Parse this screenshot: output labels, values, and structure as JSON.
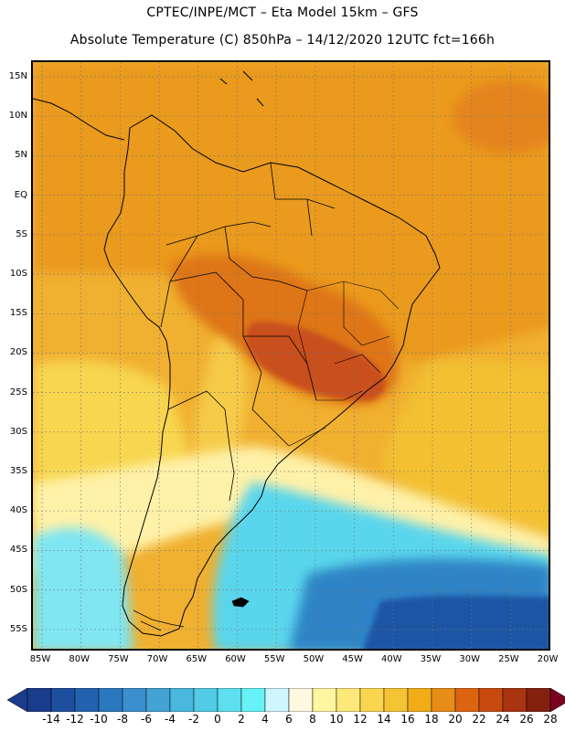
{
  "header": {
    "line1": "CPTEC/INPE/MCT –  Eta Model 15km – GFS",
    "line2": "Absolute Temperature (C) 850hPa – 14/12/2020 12UTC fct=166h"
  },
  "map": {
    "projection": "cylindrical",
    "lon_range": [
      -86,
      -19
    ],
    "lat_range": [
      -58,
      17
    ],
    "lat_labels": [
      "15N",
      "10N",
      "5N",
      "EQ",
      "5S",
      "10S",
      "15S",
      "20S",
      "25S",
      "30S",
      "35S",
      "40S",
      "45S",
      "50S",
      "55S"
    ],
    "lon_labels": [
      "85W",
      "80W",
      "75W",
      "70W",
      "65W",
      "60W",
      "55W",
      "50W",
      "45W",
      "40W",
      "35W",
      "30W",
      "25W",
      "20W"
    ],
    "grid_style": "dotted"
  },
  "colorbar": {
    "labels": [
      "-14",
      "-12",
      "-10",
      "-8",
      "-6",
      "-4",
      "-2",
      "0",
      "2",
      "4",
      "6",
      "8",
      "10",
      "12",
      "14",
      "16",
      "18",
      "20",
      "22",
      "24",
      "26",
      "28"
    ],
    "colors": [
      "#1a3c8c",
      "#1d4f9e",
      "#2362ae",
      "#2b78bf",
      "#3a8fcc",
      "#43a3d4",
      "#4ab7de",
      "#52cbe6",
      "#5cdfee",
      "#66f2f6",
      "#cff6ff",
      "#fff8e0",
      "#fff7a0",
      "#fde87a",
      "#fad650",
      "#f5c336",
      "#f0ad18",
      "#e88c18",
      "#dc6410",
      "#c84a10",
      "#a83410",
      "#84200e",
      "#5c0e0a",
      "#7a0020"
    ],
    "under_color": "#1a3c8c",
    "over_color": "#7a0020"
  }
}
